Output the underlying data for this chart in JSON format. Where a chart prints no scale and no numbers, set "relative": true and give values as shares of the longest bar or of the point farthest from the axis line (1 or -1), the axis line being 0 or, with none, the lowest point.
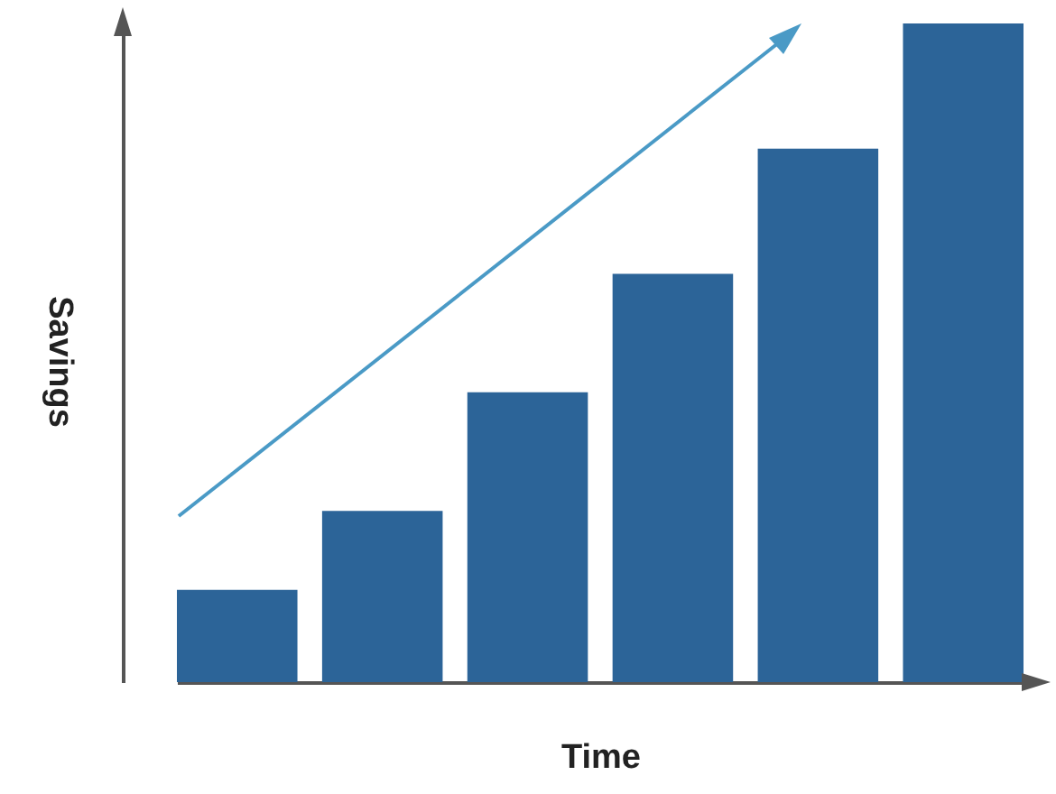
{
  "chart_data": {
    "type": "bar",
    "xlabel": "Time",
    "ylabel": "Savings",
    "relative": true,
    "categories": [
      null,
      null,
      null,
      null,
      null,
      null
    ],
    "values": [
      0.14,
      0.26,
      0.44,
      0.62,
      0.81,
      1
    ],
    "color": "#2c6498",
    "grid": false
  }
}
